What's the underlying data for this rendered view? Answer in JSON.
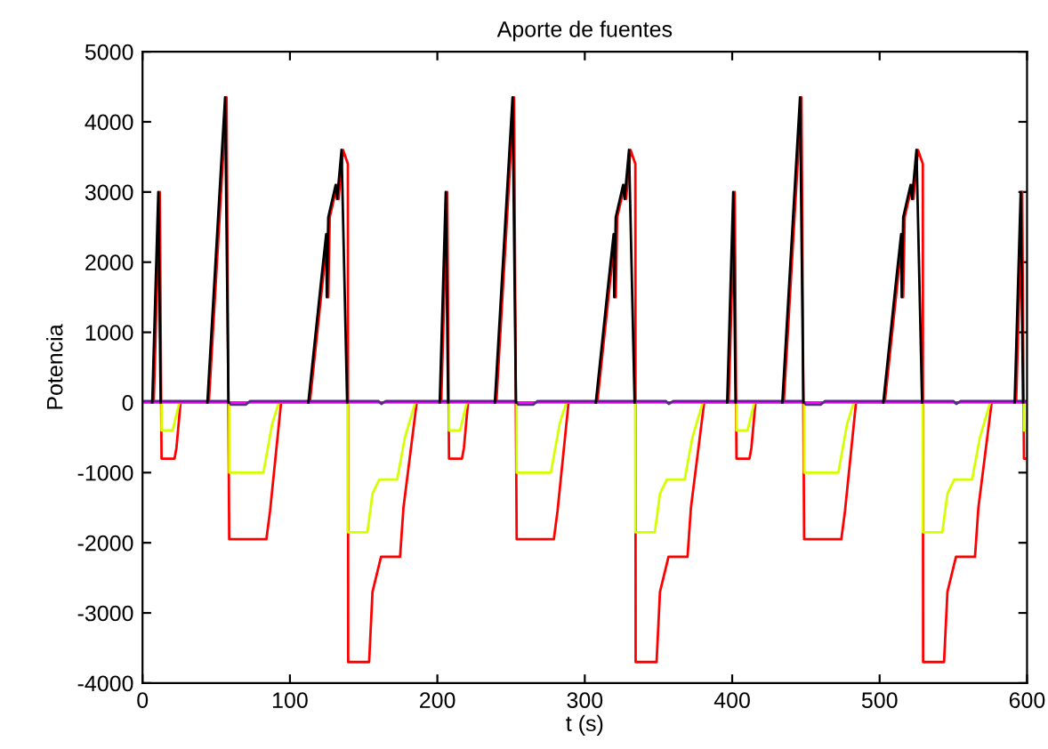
{
  "chart_data": {
    "type": "line",
    "title": "Aporte de fuentes",
    "xlabel": "t (s)",
    "ylabel": "Potencia",
    "xlim": [
      0,
      600
    ],
    "xticks": [
      0,
      100,
      200,
      300,
      400,
      500,
      600
    ],
    "ylim": [
      -4000,
      5000
    ],
    "yticks": [
      -4000,
      -3000,
      -2000,
      -1000,
      0,
      1000,
      2000,
      3000,
      4000,
      5000
    ],
    "grid": false,
    "legend": false,
    "line_style": "solid",
    "marker": "none",
    "series": [
      {
        "color": "#ff0000",
        "x": [
          0,
          7.6,
          11.7,
          12.9,
          21.7,
          23,
          25.8,
          45,
          57,
          58.8,
          84,
          86.5,
          94,
          113.5,
          125.6,
          126,
          127,
          132,
          133,
          136,
          139.3,
          139.5,
          153.7,
          156,
          161.8,
          174.7,
          177,
          186,
          195,
          202.6,
          206.7,
          207.9,
          216.7,
          218,
          220.8,
          240,
          252,
          253.8,
          279,
          281.5,
          289,
          308.5,
          320.6,
          321,
          322,
          327,
          328,
          331,
          334.3,
          334.5,
          348.7,
          351,
          356.8,
          369.7,
          372,
          381,
          390,
          397.6,
          401.7,
          402.9,
          411.7,
          413,
          415.8,
          435,
          447,
          448.8,
          474,
          476.5,
          484,
          503.5,
          515.6,
          516,
          517,
          522,
          523,
          526,
          529.3,
          529.5,
          543.7,
          546,
          551.8,
          564.7,
          567,
          576,
          585,
          592.6,
          596.7,
          597.9,
          600
        ],
        "values": [
          0,
          0,
          3000,
          -800,
          -800,
          -650,
          0,
          0,
          4350,
          -1950,
          -1950,
          -1550,
          0,
          0,
          2400,
          1500,
          2640,
          3100,
          2900,
          3600,
          3400,
          -3700,
          -3700,
          -2700,
          -2200,
          -2200,
          -1500,
          0,
          0,
          0,
          3000,
          -800,
          -800,
          -650,
          0,
          0,
          4350,
          -1950,
          -1950,
          -1550,
          0,
          0,
          2400,
          1500,
          2640,
          3100,
          2900,
          3600,
          3400,
          -3700,
          -3700,
          -2700,
          -2200,
          -2200,
          -1500,
          0,
          0,
          0,
          3000,
          -800,
          -800,
          -650,
          0,
          0,
          4350,
          -1950,
          -1950,
          -1550,
          0,
          0,
          2400,
          1500,
          2640,
          3100,
          2900,
          3600,
          3400,
          -3700,
          -3700,
          -2700,
          -2200,
          -2200,
          -1500,
          0,
          0,
          0,
          3000,
          -800,
          -800
        ]
      },
      {
        "color": "#d4ff00",
        "x": [
          0,
          12.9,
          12.91,
          20.4,
          25,
          58.8,
          58.81,
          82,
          88,
          92.5,
          139.3,
          139.31,
          152.5,
          156,
          160.6,
          172.7,
          178,
          185,
          195,
          207.9,
          207.91,
          215.4,
          220,
          253.8,
          253.81,
          277,
          283,
          287.5,
          334.3,
          334.31,
          347.5,
          351,
          355.6,
          367.7,
          373,
          380,
          390,
          402.9,
          402.91,
          410.4,
          415,
          448.8,
          448.81,
          472,
          478,
          482.5,
          529.3,
          529.31,
          542.5,
          546,
          550.6,
          562.7,
          568,
          575,
          585,
          597.9,
          597.91,
          600
        ],
        "values": [
          0,
          0,
          -400,
          -400,
          0,
          0,
          -1000,
          -1000,
          -300,
          0,
          0,
          -1850,
          -1850,
          -1300,
          -1100,
          -1100,
          -500,
          0,
          0,
          0,
          -400,
          -400,
          0,
          0,
          -1000,
          -1000,
          -300,
          0,
          0,
          -1850,
          -1850,
          -1300,
          -1100,
          -1100,
          -500,
          0,
          0,
          0,
          -400,
          -400,
          0,
          0,
          -1000,
          -1000,
          -300,
          0,
          0,
          -1850,
          -1850,
          -1300,
          -1100,
          -1100,
          -500,
          0,
          0,
          0,
          -400,
          -400
        ]
      },
      {
        "color": "#ff00ff",
        "x": [
          0,
          600
        ],
        "values": [
          0,
          0
        ]
      },
      {
        "color": "#5a2a8a",
        "x": [
          0,
          58,
          60,
          70,
          73,
          160,
          162,
          165,
          195,
          253,
          255,
          265,
          268,
          355,
          357,
          360,
          390,
          448,
          450,
          460,
          463,
          550,
          552,
          555,
          600
        ],
        "values": [
          20,
          20,
          -30,
          -30,
          20,
          20,
          -20,
          20,
          20,
          20,
          -30,
          -30,
          20,
          20,
          -20,
          20,
          20,
          20,
          -30,
          -30,
          20,
          20,
          -20,
          20,
          20
        ]
      },
      {
        "color": "#000000",
        "x": [
          6.6,
          10.7,
          12.3,
          30,
          44,
          56,
          58.3,
          90,
          112.5,
          121,
          124.6,
          125,
          126,
          131,
          132,
          135,
          138.8,
          170,
          201.6,
          205.7,
          207.3,
          225,
          239,
          251,
          253.3,
          285,
          307.5,
          316,
          319.6,
          320,
          321,
          326,
          327,
          330,
          333.8,
          365,
          396.6,
          400.7,
          402.3,
          420,
          434,
          446,
          448.3,
          480,
          502.5,
          511,
          514.6,
          515,
          516,
          521,
          522,
          525,
          528.8,
          560,
          591.6,
          595.7,
          597.3
        ],
        "values": [
          0,
          3000,
          0,
          null,
          0,
          4350,
          0,
          null,
          0,
          1700,
          2400,
          1500,
          2640,
          3100,
          2900,
          3600,
          0,
          null,
          0,
          3000,
          0,
          null,
          0,
          4350,
          0,
          null,
          0,
          1700,
          2400,
          1500,
          2640,
          3100,
          2900,
          3600,
          0,
          null,
          0,
          3000,
          0,
          null,
          0,
          4350,
          0,
          null,
          0,
          1700,
          2400,
          1500,
          2640,
          3100,
          2900,
          3600,
          0,
          null,
          0,
          3000,
          0
        ]
      }
    ]
  }
}
